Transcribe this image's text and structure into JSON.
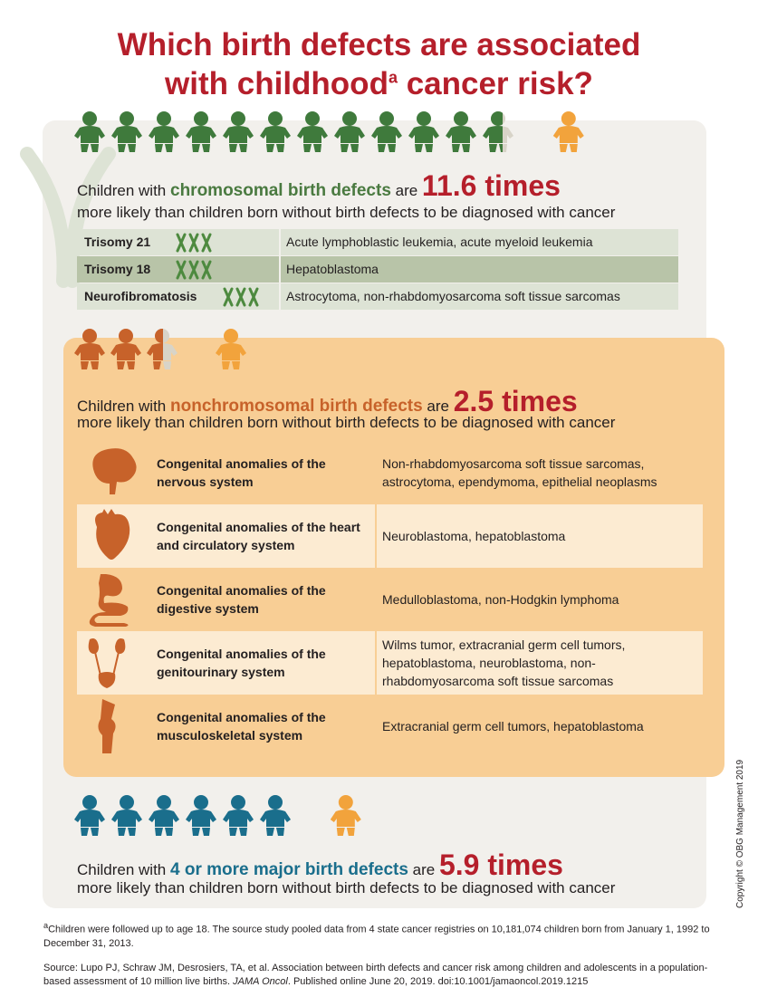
{
  "title": {
    "line1": "Which birth defects are associated",
    "line2_before": "with childhood",
    "line2_sup": "a",
    "line2_after": " cancer risk?"
  },
  "colors": {
    "red": "#b51f2b",
    "green": "#3f7a3c",
    "green_text": "#4a7a40",
    "orange_dark": "#c7622a",
    "orange_light": "#f2a33c",
    "teal": "#1a6e8c",
    "table_green_light": "#dde3d5",
    "table_green_dark": "#b8c4a8",
    "row_orange_light": "#fcebd2",
    "row_orange": "#f8ce95",
    "panel": "#f2f0ec"
  },
  "chromosomal": {
    "stat_prefix": "Children with ",
    "stat_highlight": "chromosomal birth defects",
    "stat_middle": " are ",
    "stat_value": "11.6 times",
    "stat_line2": "more likely than children born without birth defects to be diagnosed with cancer",
    "rows": [
      {
        "condition": "Trisomy 21",
        "cancers": "Acute lymphoblastic leukemia, acute myeloid leukemia",
        "chromo_icon": "chromosome-pair-icon"
      },
      {
        "condition": "Trisomy 18",
        "cancers": "Hepatoblastoma",
        "chromo_icon": "chromosome-pair-icon"
      },
      {
        "condition": "Neurofibromatosis",
        "cancers": "Astrocytoma, non-rhabdomyosarcoma soft tissue sarcomas",
        "chromo_icon": "chromosome-pair-icon"
      }
    ]
  },
  "nonchromosomal": {
    "stat_prefix": "Children with ",
    "stat_highlight": "nonchromosomal birth defects",
    "stat_middle": " are ",
    "stat_value": "2.5 times",
    "stat_line2": "more likely than children born without birth defects to be diagnosed with cancer",
    "rows": [
      {
        "anomaly": "Congenital anomalies of the nervous system",
        "cancers": "Non-rhabdomyosarcoma soft tissue sarcomas, astrocytoma, ependymoma, epithelial neoplasms",
        "icon": "brain-icon"
      },
      {
        "anomaly": "Congenital anomalies of the heart and circulatory system",
        "cancers": "Neuroblastoma, hepatoblastoma",
        "icon": "heart-icon"
      },
      {
        "anomaly": "Congenital anomalies of the digestive system",
        "cancers": "Medulloblastoma, non-Hodgkin lymphoma",
        "icon": "digestive-system-icon"
      },
      {
        "anomaly": "Congenital anomalies of the genitourinary system",
        "cancers": "Wilms tumor, extracranial germ cell tumors, hepatoblastoma, neuroblastoma, non-rhabdomyosarcoma soft tissue sarcomas",
        "icon": "kidneys-icon"
      },
      {
        "anomaly": "Congenital anomalies of the musculoskeletal system",
        "cancers": "Extracranial germ cell tumors, hepatoblastoma",
        "icon": "knee-joint-icon"
      }
    ]
  },
  "major": {
    "stat_prefix": "Children with ",
    "stat_highlight": "4 or more major birth defects",
    "stat_middle": " are ",
    "stat_value": "5.9 times",
    "stat_line2": "more likely than children born without birth defects to be diagnosed with cancer"
  },
  "pictograms": {
    "chromosomal_figures": 11.6,
    "nonchromosomal_figures": 2.5,
    "major_figures": 5.9,
    "icon": "baby-icon"
  },
  "footnote": {
    "sup": "a",
    "text": "Children were followed up to age 18. The source study pooled data from 4 state cancer registries on 10,181,074 children born from January 1, 1992 to December 31, 2013."
  },
  "source": {
    "prefix": "Source: Lupo PJ, Schraw JM, Desrosiers, TA, et al. Association between birth defects and cancer risk among children and adolescents in a population-based assessment of 10 million live births. ",
    "journal": "JAMA Oncol",
    "suffix": ". Published online June 20, 2019. doi:10.1001/jamaoncol.2019.1215"
  },
  "copyright": "Copyright © OBG Management 2019"
}
